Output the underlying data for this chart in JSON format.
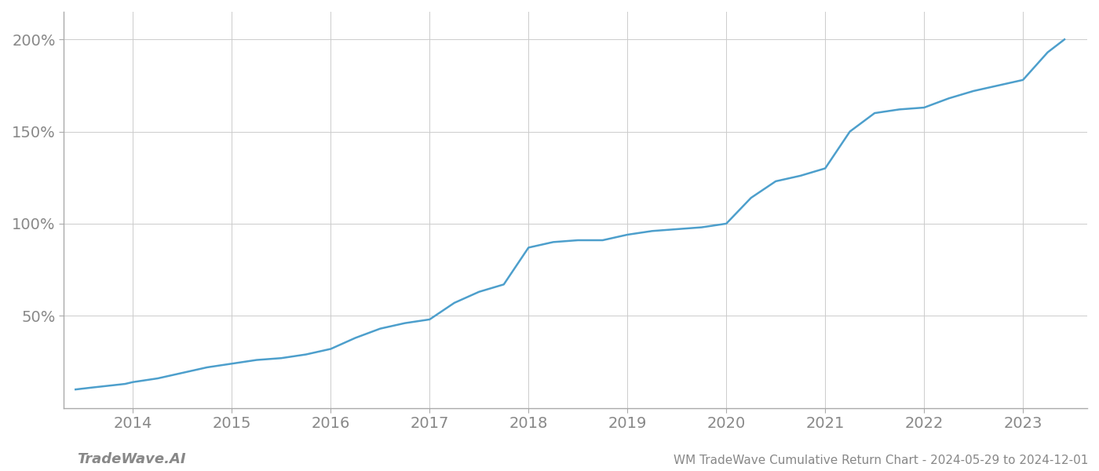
{
  "title": "WM TradeWave Cumulative Return Chart - 2024-05-29 to 2024-12-01",
  "watermark": "TradeWave.AI",
  "line_color": "#4d9fcc",
  "background_color": "#ffffff",
  "grid_color": "#cccccc",
  "x_years": [
    2014,
    2015,
    2016,
    2017,
    2018,
    2019,
    2020,
    2021,
    2022,
    2023
  ],
  "x_data": [
    2013.42,
    2013.58,
    2013.75,
    2013.92,
    2014.0,
    2014.25,
    2014.5,
    2014.75,
    2015.0,
    2015.25,
    2015.5,
    2015.75,
    2016.0,
    2016.25,
    2016.5,
    2016.75,
    2017.0,
    2017.25,
    2017.5,
    2017.75,
    2018.0,
    2018.25,
    2018.5,
    2018.75,
    2019.0,
    2019.25,
    2019.5,
    2019.75,
    2020.0,
    2020.25,
    2020.5,
    2020.75,
    2021.0,
    2021.25,
    2021.5,
    2021.75,
    2022.0,
    2022.25,
    2022.5,
    2022.75,
    2023.0,
    2023.25,
    2023.42
  ],
  "y_data": [
    10,
    11,
    12,
    13,
    14,
    16,
    19,
    22,
    24,
    26,
    27,
    29,
    32,
    38,
    43,
    46,
    48,
    57,
    63,
    67,
    87,
    90,
    91,
    91,
    94,
    96,
    97,
    98,
    100,
    114,
    123,
    126,
    130,
    150,
    160,
    162,
    163,
    168,
    172,
    175,
    178,
    193,
    200
  ],
  "yticks": [
    50,
    100,
    150,
    200
  ],
  "ytick_labels": [
    "50%",
    "100%",
    "150%",
    "200%"
  ],
  "ylim": [
    0,
    215
  ],
  "xlim": [
    2013.3,
    2023.65
  ],
  "title_fontsize": 11,
  "tick_fontsize": 14,
  "watermark_fontsize": 13,
  "line_width": 1.8
}
